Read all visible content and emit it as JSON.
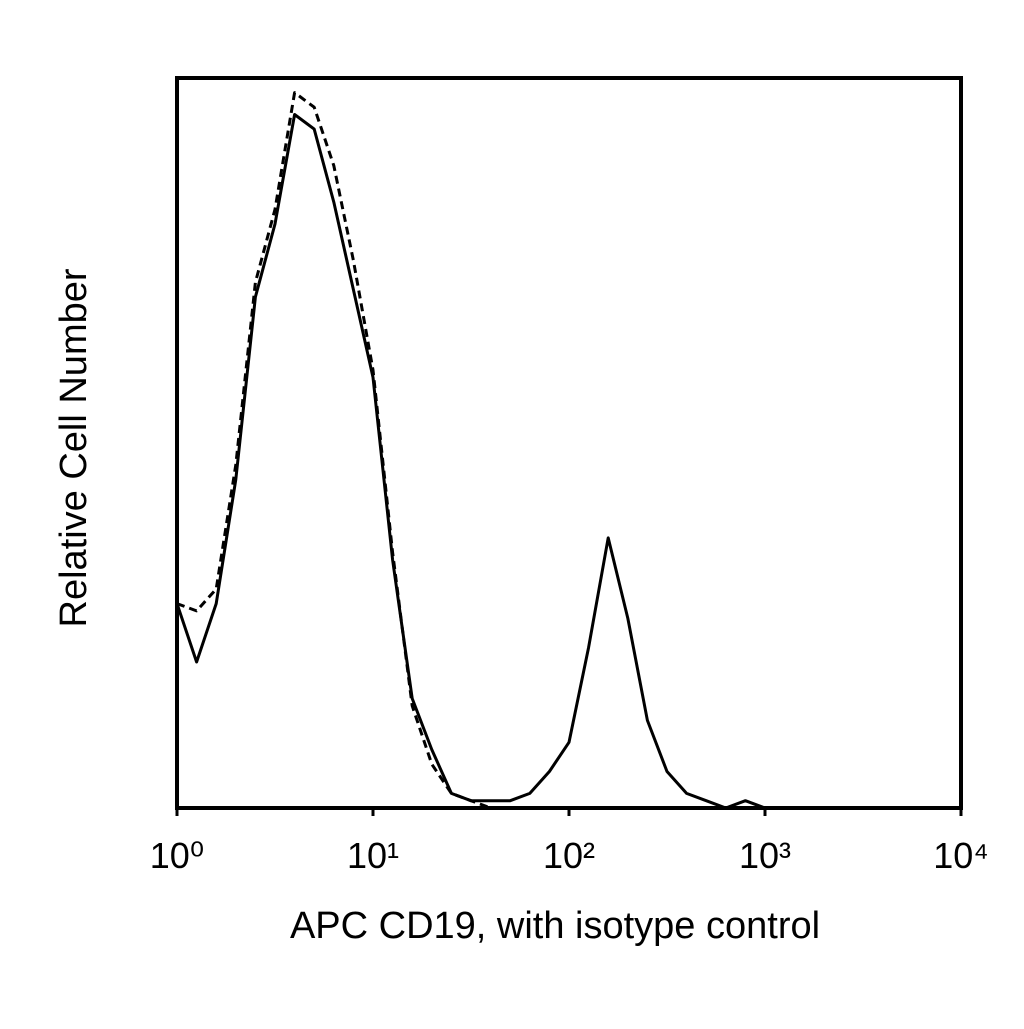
{
  "chart_data": {
    "type": "line",
    "x_label": "APC CD19, with isotype control",
    "y_label": "Relative Cell Number",
    "x_scale": "log",
    "xlim": [
      1,
      10000
    ],
    "xticks": [
      {
        "value": 1,
        "label": "10⁰"
      },
      {
        "value": 10,
        "label": "10¹"
      },
      {
        "value": 100,
        "label": "10²"
      },
      {
        "value": 1000,
        "label": "10³"
      },
      {
        "value": 10000,
        "label": "10⁴"
      }
    ],
    "ylim": [
      0,
      100
    ],
    "x": [
      1,
      1.259,
      1.585,
      1.995,
      2.512,
      3.162,
      3.981,
      5.012,
      6.31,
      7.943,
      10,
      12.59,
      15.85,
      19.95,
      25.12,
      31.62,
      39.81,
      50.12,
      63.1,
      79.43,
      100,
      125.9,
      158.5,
      199.5,
      251.2,
      316.2,
      398.1,
      501.2,
      631,
      794.3,
      1000,
      1259,
      1585,
      1995,
      2512,
      3162,
      3981,
      5012,
      6310,
      7943,
      10000
    ],
    "series": [
      {
        "color": "#000000",
        "style": "solid",
        "values": [
          28,
          20,
          28,
          45,
          70,
          80,
          95,
          93,
          83,
          71,
          59,
          34,
          15,
          8,
          2,
          1,
          1,
          1,
          2,
          5,
          9,
          22,
          37,
          26,
          12,
          5,
          2,
          1,
          0,
          1,
          0,
          0,
          0,
          0,
          0,
          0,
          0,
          0,
          0,
          0,
          0
        ]
      },
      {
        "color": "#000000",
        "style": "dashed",
        "values": [
          28,
          27,
          30,
          47,
          72,
          82,
          98,
          96,
          88,
          75,
          60,
          35,
          14,
          6,
          2,
          1,
          0,
          0,
          0,
          0,
          0,
          0,
          0,
          0,
          0,
          0,
          0,
          0,
          0,
          0,
          0,
          0,
          0,
          0,
          0,
          0,
          0,
          0,
          0,
          0,
          0
        ]
      }
    ]
  }
}
